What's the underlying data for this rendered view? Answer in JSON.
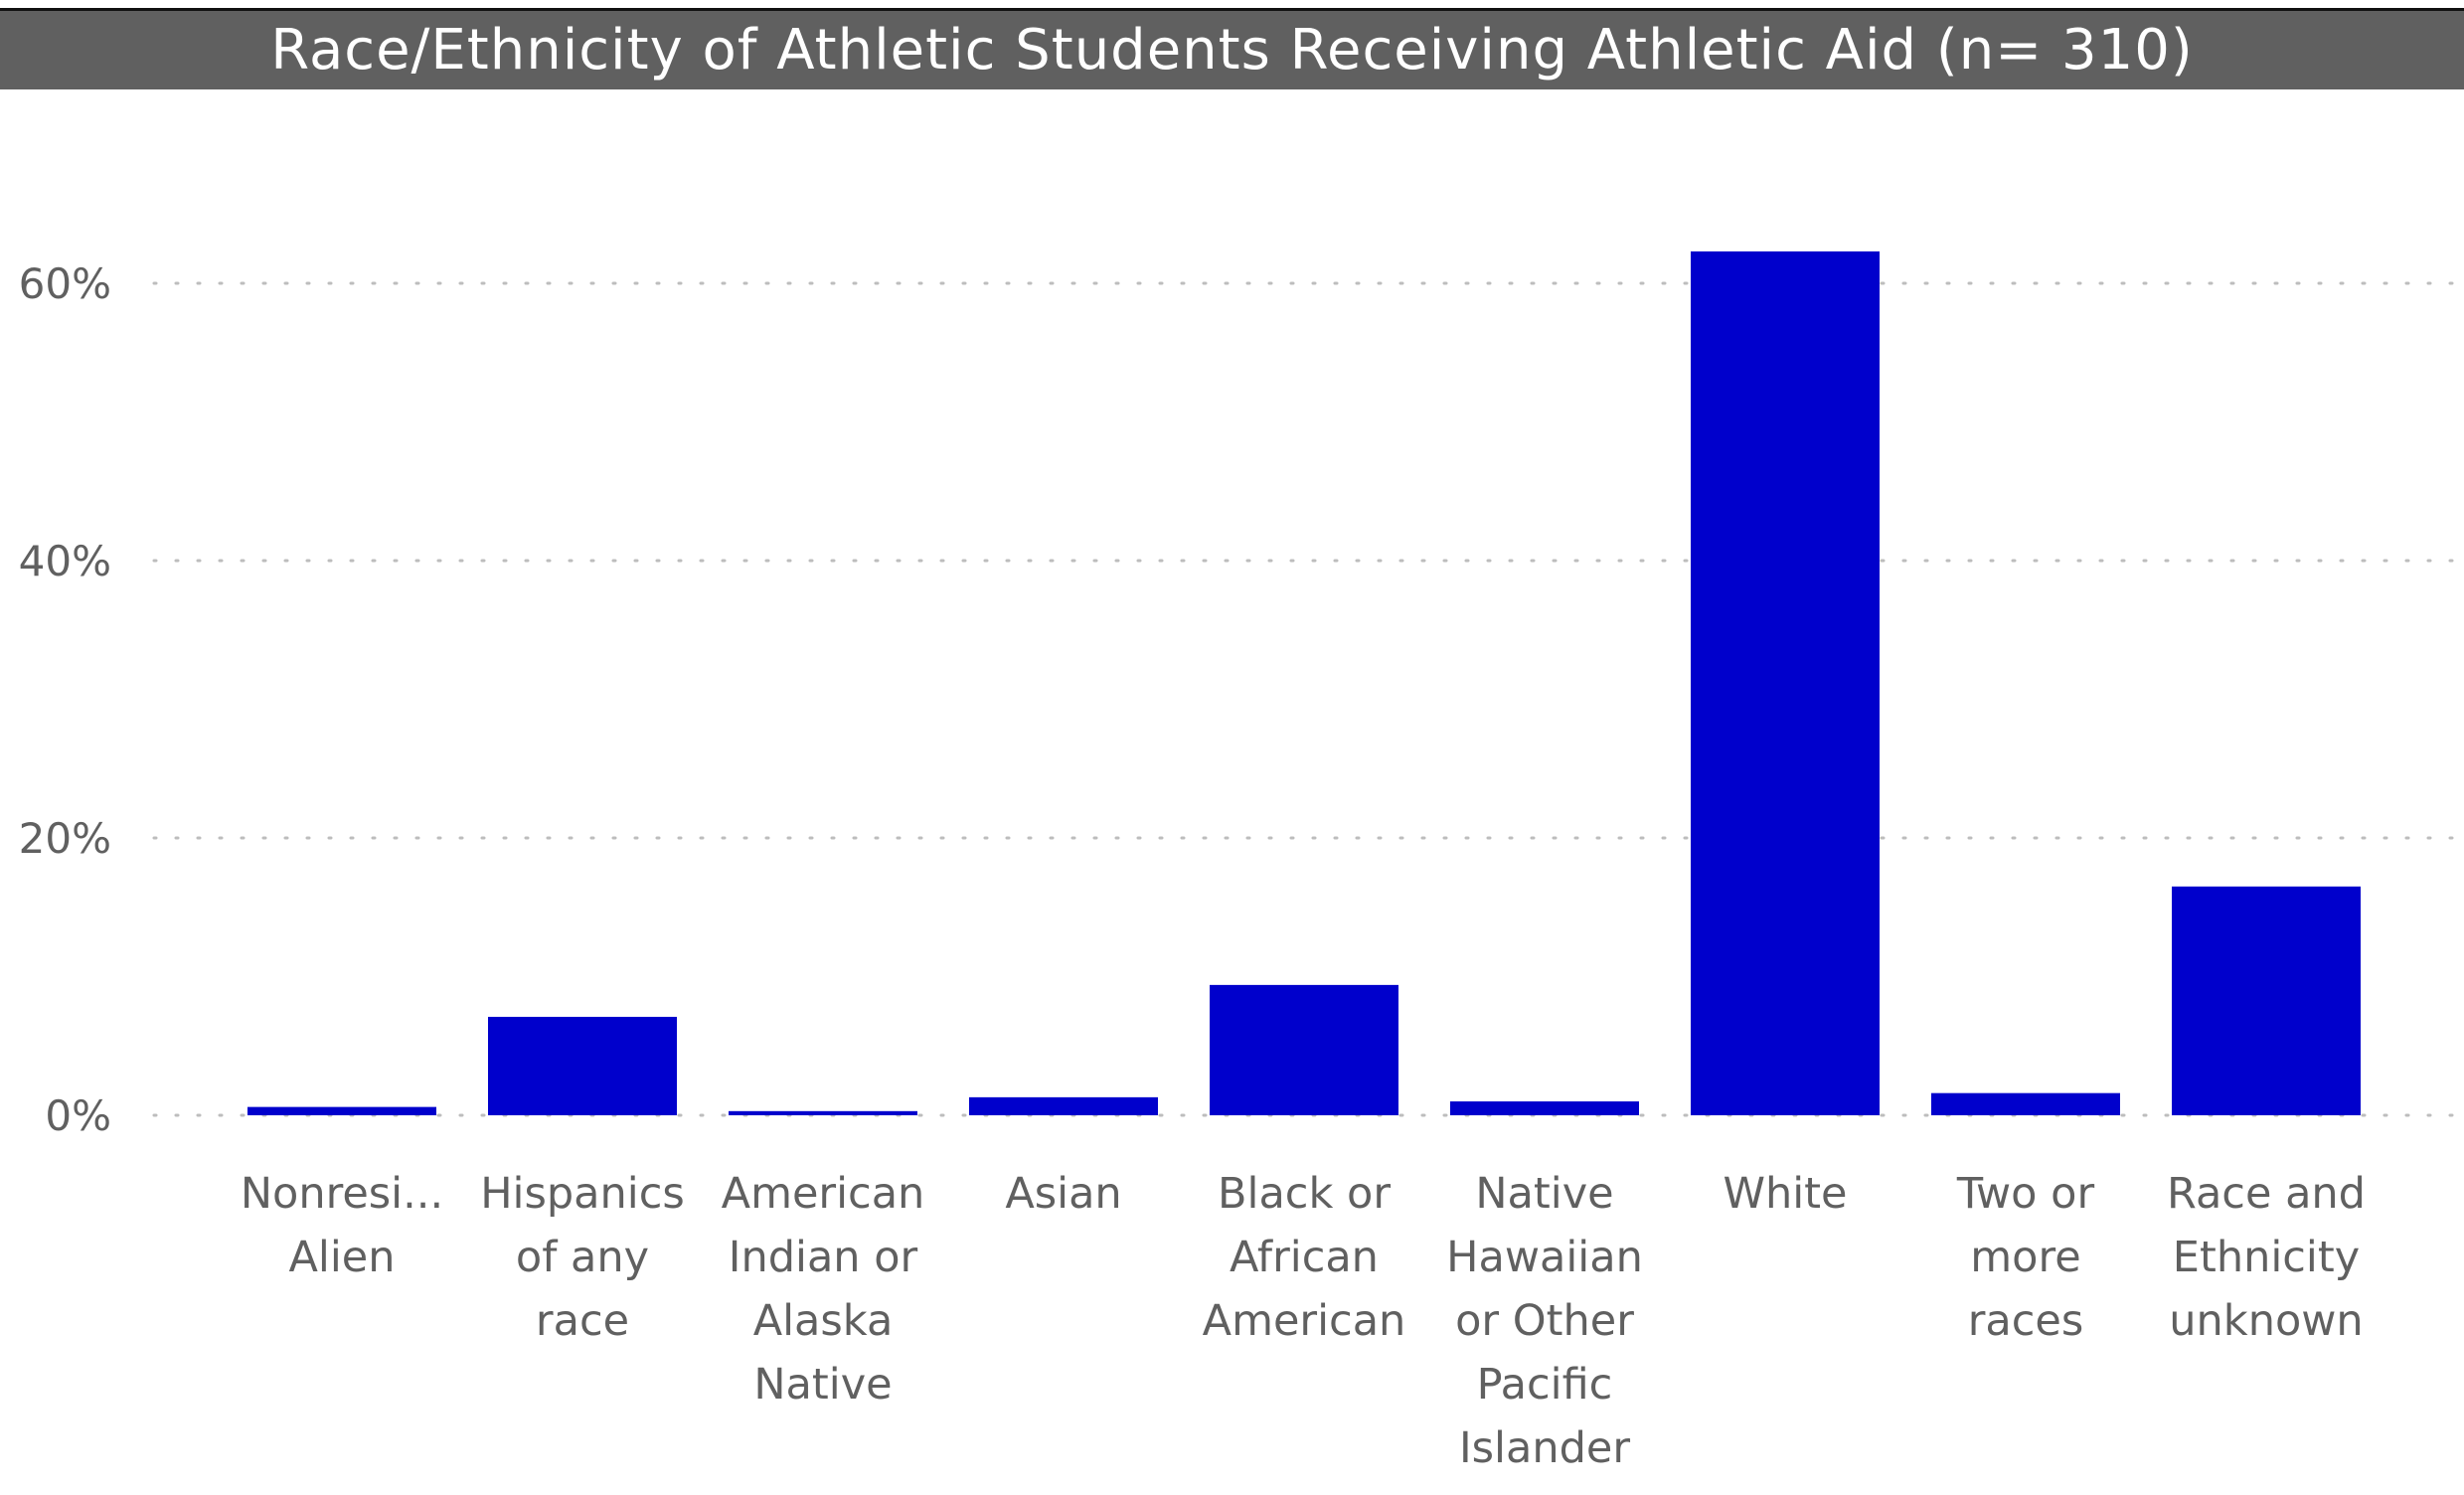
{
  "title": "Race/Ethnicity of Athletic Students Receiving Athletic Aid (n= 310)",
  "colors": {
    "bar": "#0000CC",
    "grid": "#BDBDBD",
    "title_bg": "#606060",
    "text": "#606060"
  },
  "chart_data": {
    "type": "bar",
    "title": "Race/Ethnicity of Athletic Students Receiving Athletic Aid (n= 310)",
    "xlabel": "",
    "ylabel": "",
    "ylim": [
      0,
      0.7
    ],
    "yticks": [
      0,
      0.2,
      0.4,
      0.6
    ],
    "ytick_labels": [
      "0%",
      "20%",
      "40%",
      "60%"
    ],
    "grid": true,
    "categories": [
      [
        "Nonresi...",
        "Alien"
      ],
      [
        "Hispanics",
        "of any",
        "race"
      ],
      [
        "American",
        "Indian or",
        "Alaska",
        "Native"
      ],
      [
        "Asian"
      ],
      [
        "Black or",
        "African",
        "American"
      ],
      [
        "Native",
        "Hawaiian",
        "or Other",
        "Pacific",
        "Islander"
      ],
      [
        "White"
      ],
      [
        "Two or",
        "more",
        "races"
      ],
      [
        "Race and",
        "Ethnicity",
        "unknown"
      ]
    ],
    "values": [
      0.006,
      0.071,
      0.003,
      0.013,
      0.094,
      0.01,
      0.623,
      0.016,
      0.165
    ]
  }
}
